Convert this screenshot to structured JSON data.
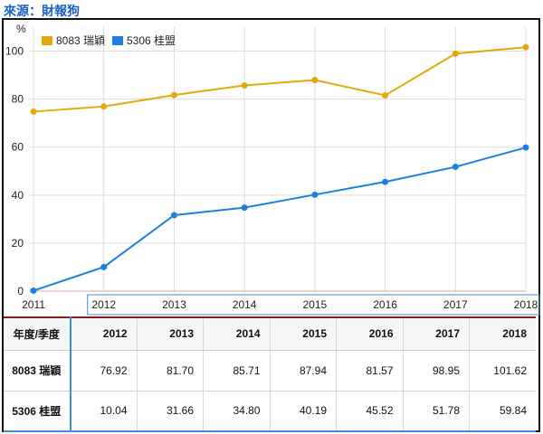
{
  "source_label": "來源：財報狗",
  "chart_data": {
    "type": "line",
    "x": [
      "2011",
      "2012",
      "2013",
      "2014",
      "2015",
      "2016",
      "2017",
      "2018"
    ],
    "ylabel": "%",
    "ylim": [
      0,
      110
    ],
    "yticks": [
      0,
      20,
      40,
      60,
      80,
      100
    ],
    "grid": true,
    "legend": "top-left",
    "series": [
      {
        "name": "8083 瑞穎",
        "color": "#e2a80c",
        "values": [
          74.8,
          76.92,
          81.7,
          85.71,
          87.94,
          81.57,
          98.95,
          101.62
        ]
      },
      {
        "name": "5306 桂盟",
        "color": "#1e7fe0",
        "values": [
          0.2,
          10.04,
          31.66,
          34.8,
          40.19,
          45.52,
          51.78,
          59.84
        ]
      }
    ]
  },
  "table": {
    "corner": "年度/季度",
    "columns": [
      "2012",
      "2013",
      "2014",
      "2015",
      "2016",
      "2017",
      "2018"
    ],
    "rows": [
      {
        "label": "8083 瑞穎",
        "cells": [
          "76.92",
          "81.70",
          "85.71",
          "87.94",
          "81.57",
          "98.95",
          "101.62"
        ]
      },
      {
        "label": "5306 桂盟",
        "cells": [
          "10.04",
          "31.66",
          "34.80",
          "40.19",
          "45.52",
          "51.78",
          "59.84"
        ]
      }
    ]
  }
}
